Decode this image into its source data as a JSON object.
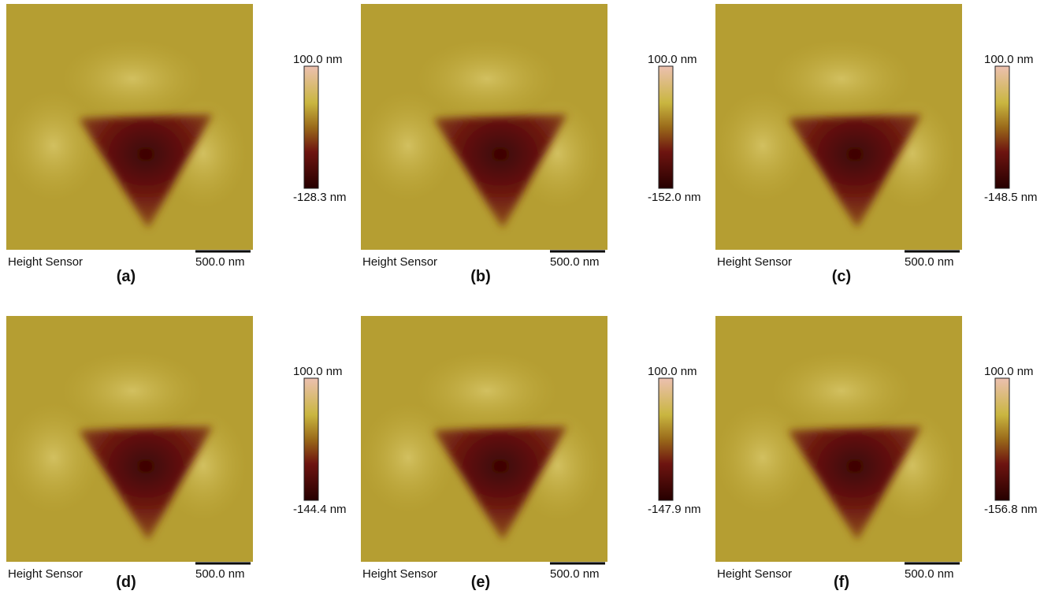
{
  "panels": [
    {
      "label": "(a)",
      "max_label": "100.0 nm",
      "min_label": "-128.3 nm",
      "sensor": "Height Sensor",
      "scale_bar": "500.0 nm"
    },
    {
      "label": "(b)",
      "max_label": "100.0 nm",
      "min_label": "-152.0 nm",
      "sensor": "Height Sensor",
      "scale_bar": "500.0 nm"
    },
    {
      "label": "(c)",
      "max_label": "100.0 nm",
      "min_label": "-148.5 nm",
      "sensor": "Height Sensor",
      "scale_bar": "500.0 nm"
    },
    {
      "label": "(d)",
      "max_label": "100.0 nm",
      "min_label": "-144.4 nm",
      "sensor": "Height Sensor",
      "scale_bar": "500.0 nm"
    },
    {
      "label": "(e)",
      "max_label": "100.0 nm",
      "min_label": "-147.9 nm",
      "sensor": "Height Sensor",
      "scale_bar": "500.0 nm"
    },
    {
      "label": "(f)",
      "max_label": "100.0 nm",
      "min_label": "-156.8 nm",
      "sensor": "Height Sensor",
      "scale_bar": "500.0 nm"
    }
  ]
}
